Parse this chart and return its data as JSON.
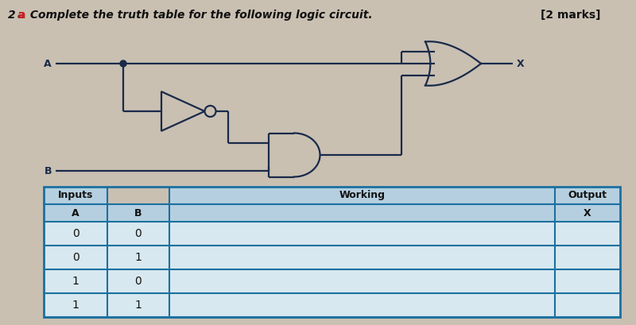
{
  "title_prefix": "2 ",
  "title_a": "a",
  "title_main": " Complete the truth table for the following logic circuit.",
  "marks": "[2 marks]",
  "bg_color": "#c9c0b2",
  "table_bg_header": "#b5cfe0",
  "table_bg_row": "#d8e8f0",
  "table_border_color": "#1a70a0",
  "table_inputs_label": "Inputs",
  "table_working_label": "Working",
  "table_output_label": "Output",
  "table_col_A": "A",
  "table_col_B": "B",
  "table_col_X": "X",
  "table_rows": [
    [
      "0",
      "0"
    ],
    [
      "0",
      "1"
    ],
    [
      "1",
      "0"
    ],
    [
      "1",
      "1"
    ]
  ],
  "circuit_color": "#1a2a4a",
  "label_A": "A",
  "label_B": "B",
  "label_X": "X"
}
